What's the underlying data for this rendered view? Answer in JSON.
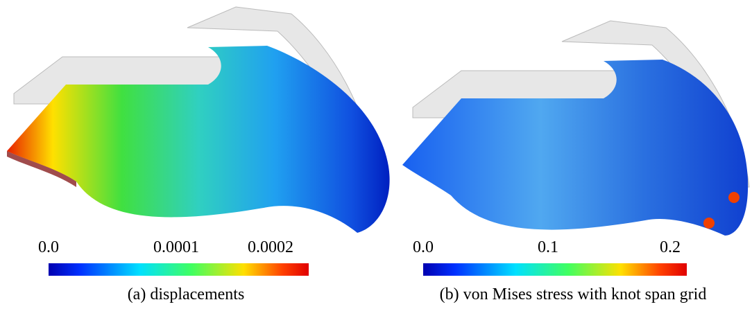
{
  "panels": [
    {
      "caption": "(a) displacements",
      "colorbar_labels": [
        "0.0",
        "0.0001",
        "0.0002"
      ]
    },
    {
      "caption": "(b) von Mises stress with knot span grid",
      "colorbar_labels": [
        "0.0",
        "0.1",
        "0.2"
      ]
    }
  ]
}
